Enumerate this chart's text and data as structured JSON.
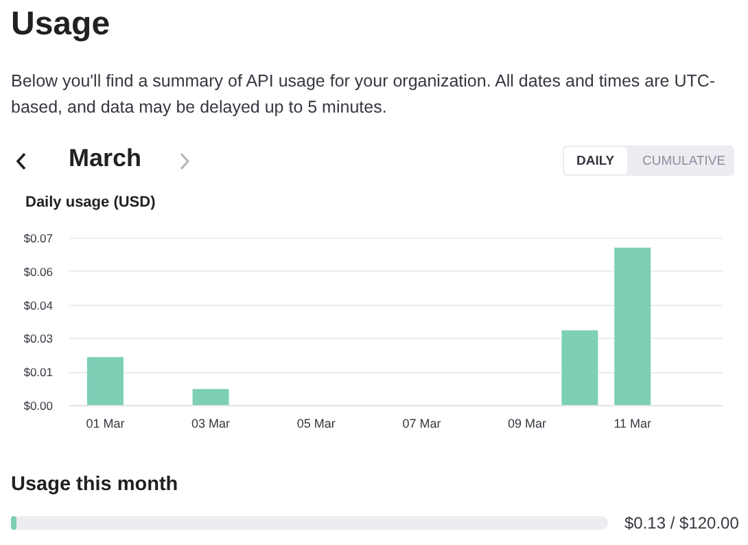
{
  "chart_data": {
    "type": "bar",
    "title": "Usage",
    "subtitle": "Below you'll find a summary of API usage for your organization. All dates and times are UTC-based, and data may be delayed up to 5 minutes.",
    "ylabel": "Daily usage (USD)",
    "categories": [
      "01 Mar",
      null,
      "03 Mar",
      null,
      "05 Mar",
      null,
      "07 Mar",
      null,
      "09 Mar",
      null,
      "11 Mar",
      null
    ],
    "values": [
      0.02,
      0,
      0.0067,
      0,
      0,
      0,
      0,
      0,
      0,
      0.0312,
      0.0658,
      0
    ],
    "color": "#7dcfb6",
    "ylim": [
      0,
      0.07
    ],
    "yticks": [
      {
        "value": 0,
        "label": "$0.00"
      },
      {
        "value": 0.014,
        "label": "$0.01"
      },
      {
        "value": 0.028,
        "label": "$0.03"
      },
      {
        "value": 0.042,
        "label": "$0.04"
      },
      {
        "value": 0.056,
        "label": "$0.06"
      },
      {
        "value": 0.07,
        "label": "$0.07"
      }
    ],
    "grid": "y",
    "annotations": [
      "March",
      "DAILY",
      "CUMULATIVE",
      "Usage this month",
      "$0.13 / $120.00"
    ]
  }
}
